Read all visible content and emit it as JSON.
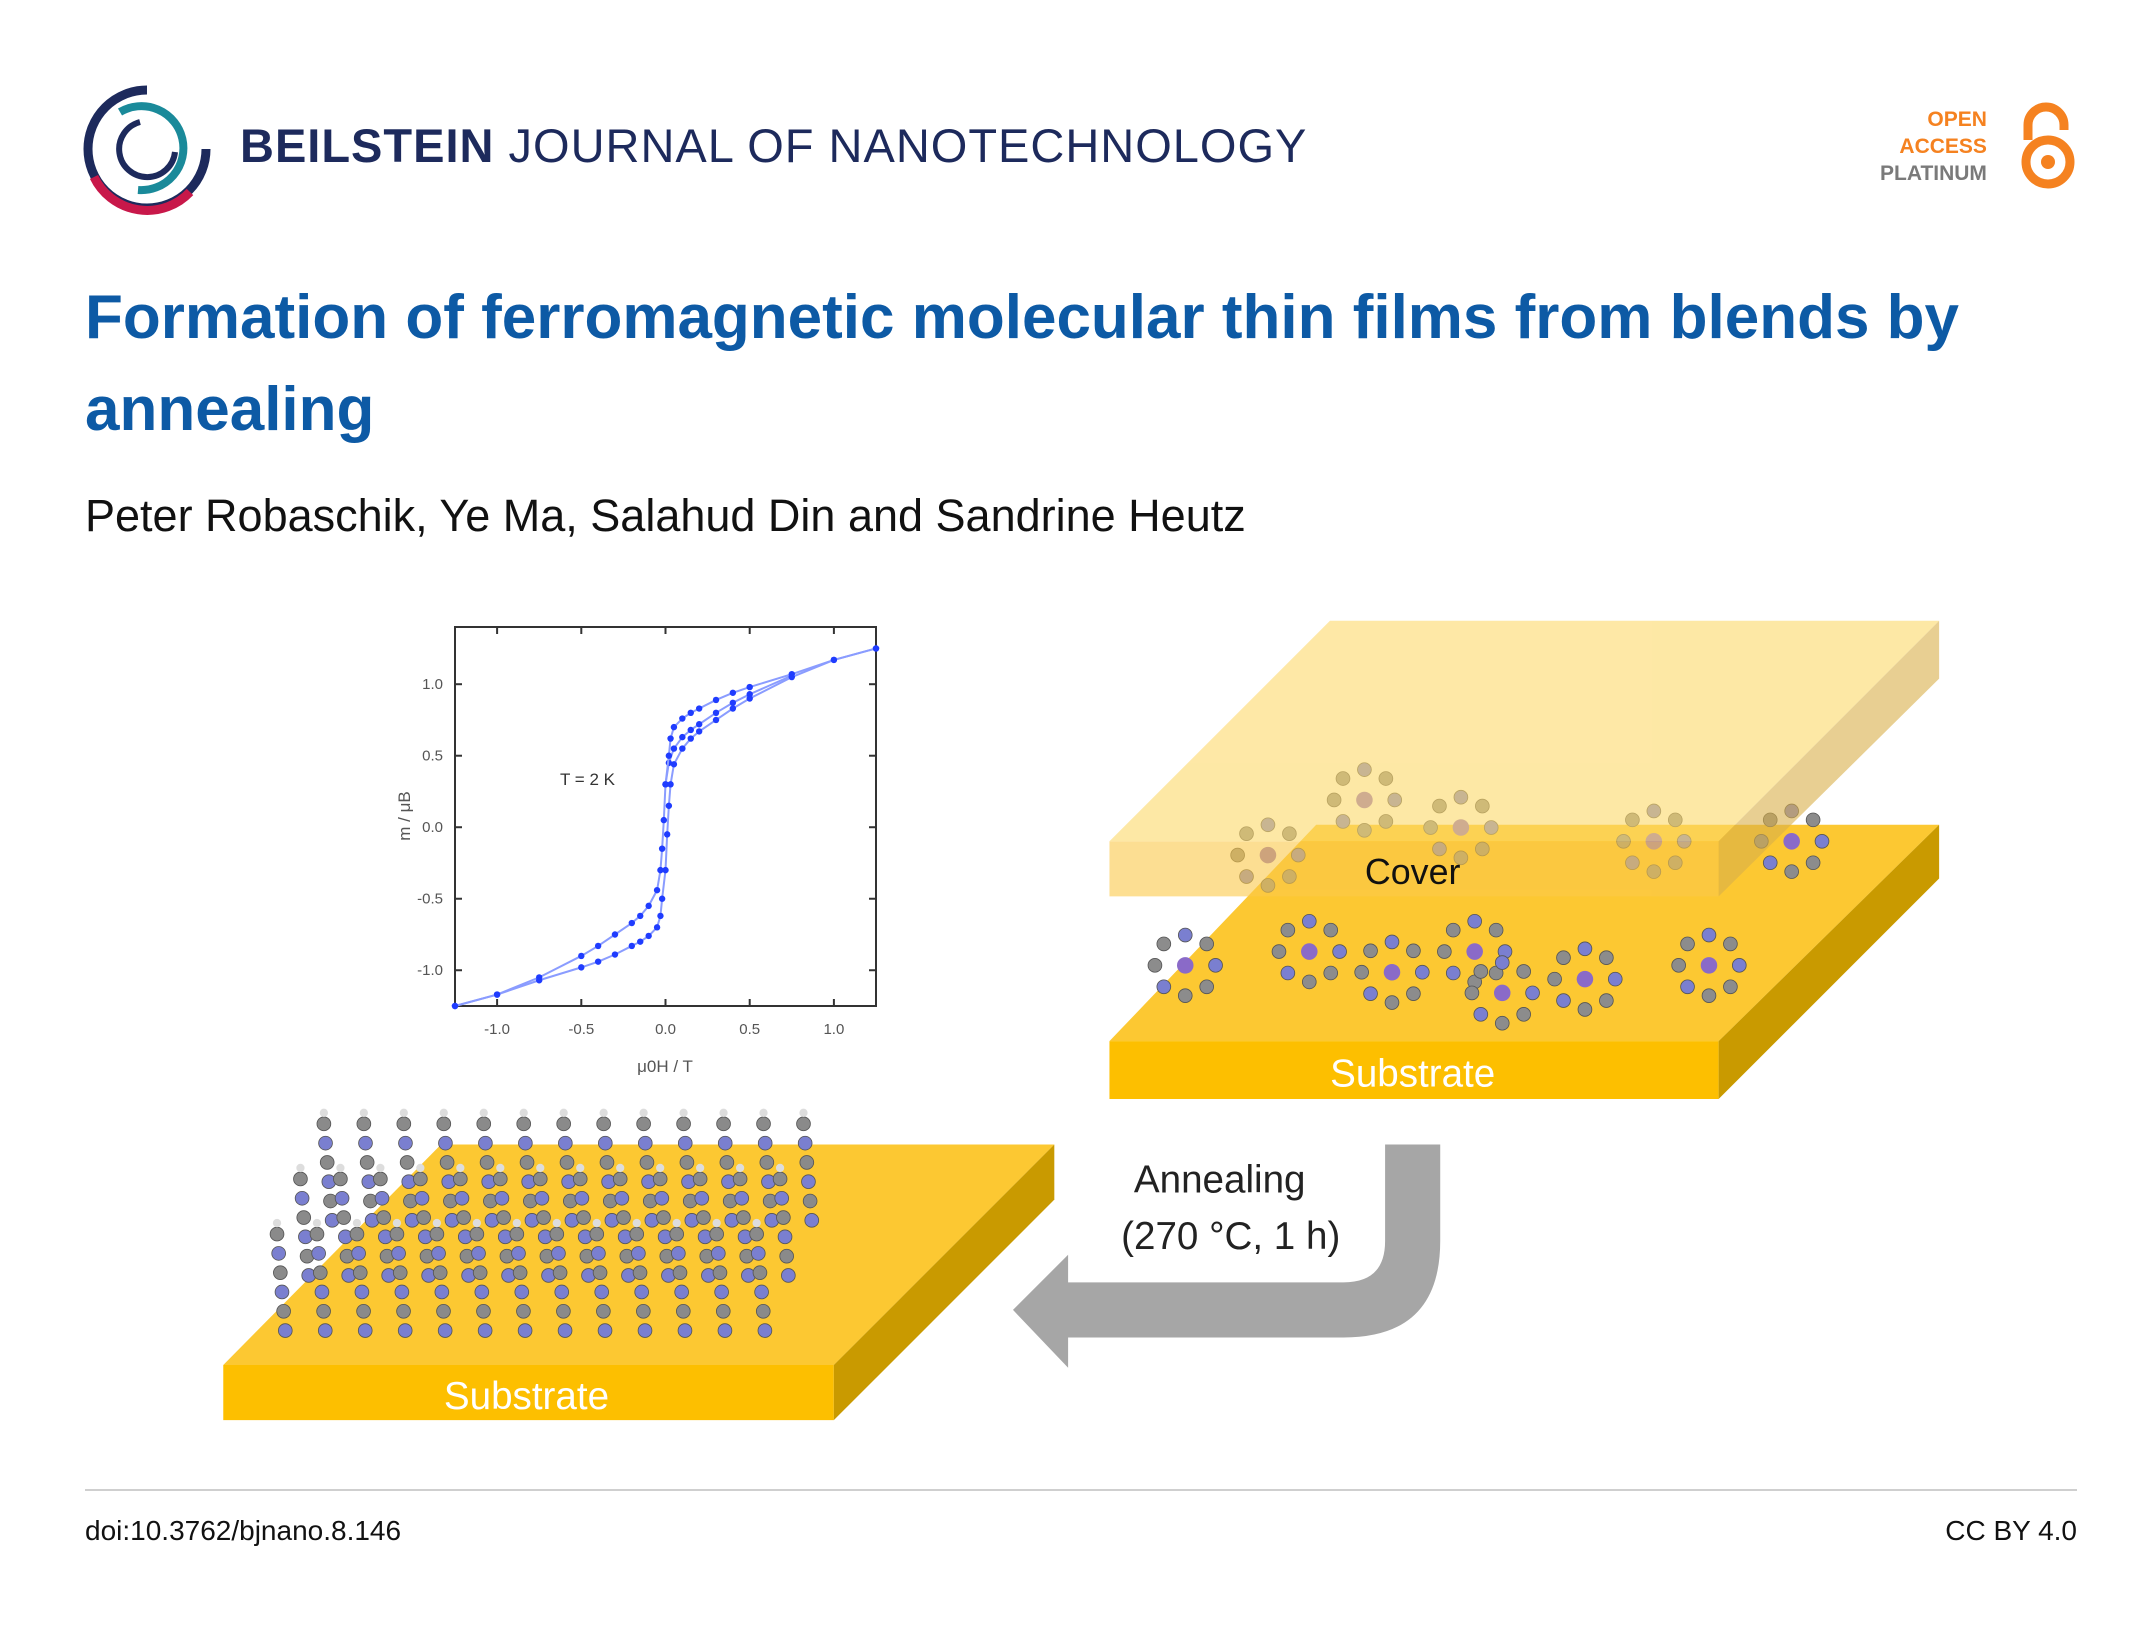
{
  "header": {
    "journal_bold": "BEILSTEIN",
    "journal_rest": " JOURNAL OF NANOTECHNOLOGY",
    "badge": {
      "line1": "OPEN",
      "line2": "ACCESS",
      "line3": "PLATINUM",
      "icon": "open-lock-icon",
      "color": "#f58220"
    },
    "logo_colors": [
      "#1d2a5c",
      "#c8184a",
      "#1a8a9a"
    ]
  },
  "title": "Formation of ferromagnetic molecular thin films from blends by annealing",
  "authors": "Peter Robaschik, Ye Ma, Salahud Din and Sandrine Heutz",
  "figure": {
    "cover_label": "Cover",
    "substrate_label_top": "Substrate",
    "substrate_label_bottom": "Substrate",
    "arrow_line1": "Annealing",
    "arrow_line2": "(270 °C, 1 h)",
    "slab_color": "#fdbf00",
    "arrow_color": "#a6a6a6"
  },
  "footer": {
    "doi": "doi:10.3762/bjnano.8.146",
    "license": "CC BY 4.0"
  },
  "chart_data": {
    "type": "line",
    "xlabel": "μ0H / T",
    "ylabel": "m / μB",
    "annotation": "T = 2 K",
    "xlim": [
      -1.25,
      1.25
    ],
    "ylim": [
      -1.25,
      1.4
    ],
    "xticks": [
      "-1.0",
      "-0.5",
      "0.0",
      "0.5",
      "1.0"
    ],
    "xtick_values": [
      -1,
      -0.5,
      0,
      0.5,
      1
    ],
    "yticks": [
      "1.0",
      "0.5",
      "0.0",
      "-0.5",
      "-1.0"
    ],
    "ytick_values": [
      1,
      0.5,
      0,
      -0.5,
      -1
    ],
    "grid": false,
    "color": "#1f3cff",
    "series": [
      {
        "x": [
          0,
          0.02,
          0.05,
          0.1,
          0.15,
          0.2,
          0.3,
          0.4,
          0.5,
          0.75
        ],
        "y": [
          0.3,
          0.45,
          0.55,
          0.63,
          0.68,
          0.72,
          0.8,
          0.87,
          0.93,
          1.06
        ]
      },
      {
        "x": [
          1.25,
          1,
          0.75,
          0.5,
          0.4,
          0.3,
          0.2,
          0.15,
          0.1,
          0.05,
          0.03,
          0.02,
          0,
          -0.01,
          -0.02,
          -0.03,
          -0.05,
          -0.1,
          -0.15,
          -0.2,
          -0.3,
          -0.4,
          -0.5,
          -0.75,
          -1,
          -1.25
        ],
        "y": [
          1.25,
          1.17,
          1.07,
          0.98,
          0.94,
          0.89,
          0.83,
          0.8,
          0.76,
          0.7,
          0.62,
          0.5,
          0.3,
          0.05,
          -0.15,
          -0.3,
          -0.44,
          -0.55,
          -0.62,
          -0.67,
          -0.75,
          -0.83,
          -0.9,
          -1.05,
          -1.17,
          -1.25
        ]
      },
      {
        "x": [
          -1.25,
          -1,
          -0.75,
          -0.5,
          -0.4,
          -0.3,
          -0.2,
          -0.15,
          -0.1,
          -0.05,
          -0.03,
          -0.02,
          0,
          0.01,
          0.02,
          0.03,
          0.05,
          0.1,
          0.15,
          0.2,
          0.3,
          0.4,
          0.5,
          0.75,
          1,
          1.25
        ],
        "y": [
          -1.25,
          -1.17,
          -1.07,
          -0.98,
          -0.94,
          -0.89,
          -0.83,
          -0.8,
          -0.76,
          -0.7,
          -0.62,
          -0.5,
          -0.3,
          -0.05,
          0.15,
          0.3,
          0.44,
          0.55,
          0.62,
          0.67,
          0.75,
          0.83,
          0.9,
          1.05,
          1.17,
          1.25
        ]
      }
    ]
  }
}
